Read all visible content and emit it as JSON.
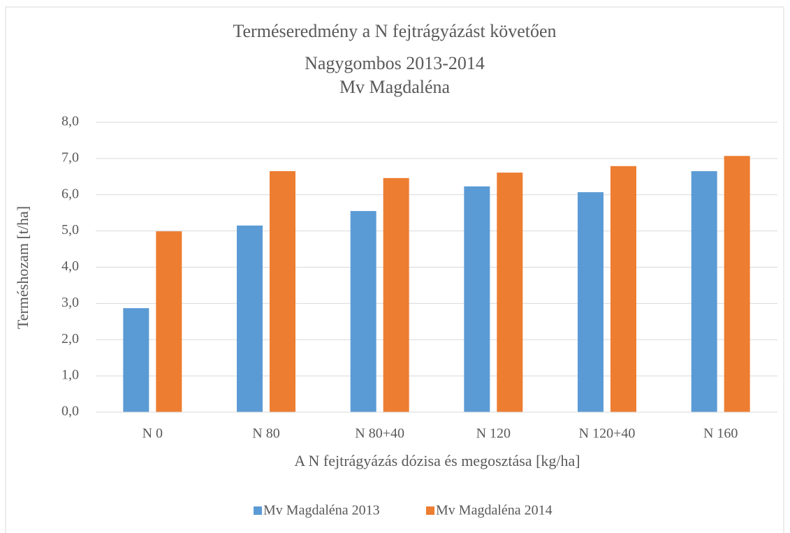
{
  "chart_data": {
    "type": "bar",
    "title": [
      "Terméseredmény a N fejtrágyázást követően",
      "Nagygombos 2013-2014",
      "Mv Magdaléna"
    ],
    "x_label": "A N fejtrágyázás dózisa és megosztása [kg/ha]",
    "y_label": "Terméshozam [t/ha]",
    "categories": [
      "N 0",
      "N 80",
      "N 80+40",
      "N 120",
      "N 120+40",
      "N 160"
    ],
    "series": [
      {
        "name": "Mv Magdaléna 2013",
        "color": "#5b9bd5",
        "values": [
          2.87,
          5.15,
          5.55,
          6.23,
          6.07,
          6.65
        ]
      },
      {
        "name": "Mv Magdaléna 2014",
        "color": "#ed7d31",
        "values": [
          4.99,
          6.65,
          6.46,
          6.61,
          6.79,
          7.07
        ]
      }
    ],
    "ylim": [
      0,
      8
    ],
    "yticks": [
      {
        "value": 0,
        "label": "0,0"
      },
      {
        "value": 1,
        "label": "1,0"
      },
      {
        "value": 2,
        "label": "2,0"
      },
      {
        "value": 3,
        "label": "3,0"
      },
      {
        "value": 4,
        "label": "4,0"
      },
      {
        "value": 5,
        "label": "5,0"
      },
      {
        "value": 6,
        "label": "6,0"
      },
      {
        "value": 7,
        "label": "7,0"
      },
      {
        "value": 8,
        "label": "8,0"
      }
    ],
    "grid": true,
    "legend": "bottom"
  }
}
